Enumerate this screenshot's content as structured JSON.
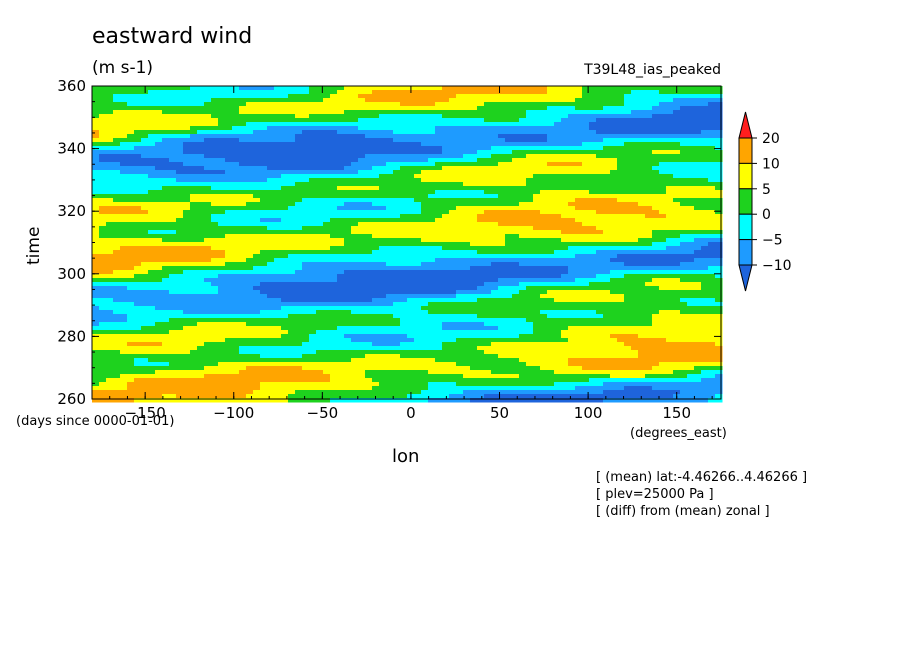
{
  "chart_data": {
    "type": "heatmap",
    "title": "eastward wind",
    "units": "(m s-1)",
    "run_label": "T39L48_ias_peaked",
    "xlabel": "lon",
    "x_units": "(degrees_east)",
    "ylabel": "time",
    "y_units": "(days since 0000-01-01)",
    "xlim": [
      -180,
      175
    ],
    "ylim": [
      260,
      360
    ],
    "x_ticks": [
      -150,
      -100,
      -50,
      0,
      50,
      100,
      150
    ],
    "y_ticks": [
      260,
      280,
      300,
      320,
      340,
      360
    ],
    "colorbar": {
      "levels": [
        -10,
        -5,
        0,
        5,
        10,
        20
      ],
      "tick_labels": [
        "20",
        "10",
        "5",
        "0",
        "−5",
        "−10"
      ],
      "colors": [
        "#1e64dc",
        "#1e9bff",
        "#00ffff",
        "#1ed21e",
        "#ffff00",
        "#ffa500",
        "#ff1e1e"
      ]
    },
    "annotations": [
      "[ (mean) lat:-4.46266..4.46266 ]",
      "[ plev=25000 Pa ]",
      "[ (diff) from (mean) zonal ]"
    ]
  }
}
